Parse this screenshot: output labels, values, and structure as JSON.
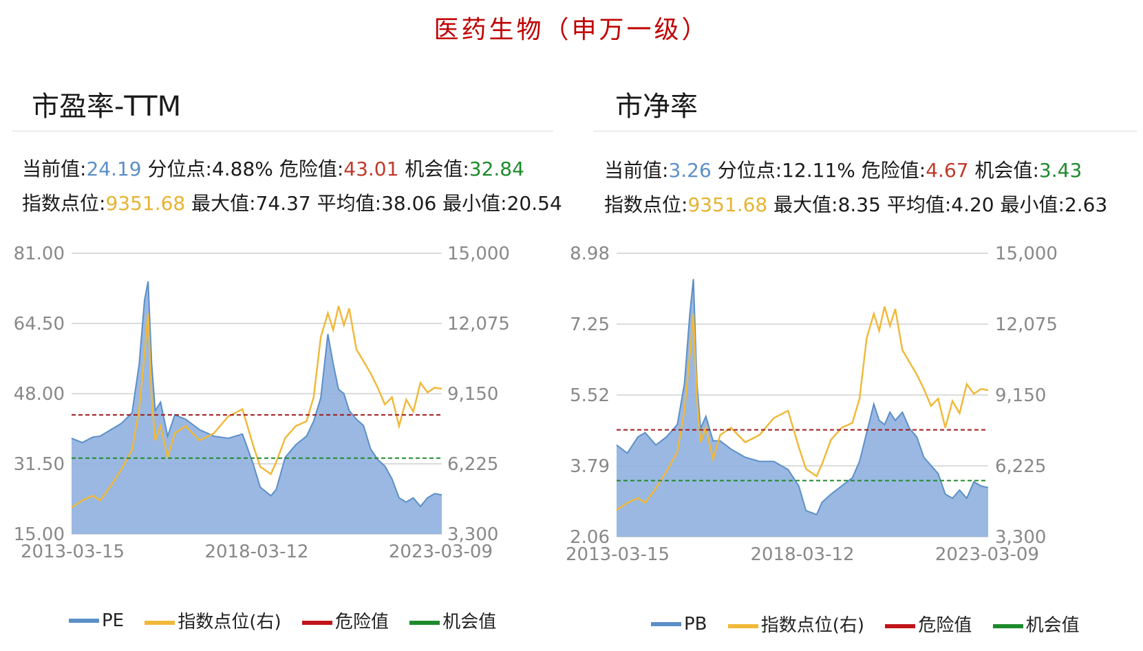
{
  "main_title": "医药生物（申万一级）",
  "colors": {
    "area": "#8fb0df",
    "area_line": "#5b8fc7",
    "index": "#f0b93a",
    "danger": "#9e1b1b",
    "chance": "#1f8a2a"
  },
  "panels": [
    {
      "title": "市盈率-TTM",
      "stats": {
        "current_label": "当前值:",
        "current": "24.19",
        "pct_label": "分位点:",
        "pct": "4.88%",
        "danger_label": "危险值:",
        "danger": "43.01",
        "chance_label": "机会值:",
        "chance": "32.84",
        "index_label": "指数点位:",
        "index": "9351.68",
        "max_label": "最大值:",
        "max": "74.37",
        "avg_label": "平均值:",
        "avg": "38.06",
        "min_label": "最小值:",
        "min": "20.54"
      },
      "legend": {
        "series": "PE",
        "index": "指数点位(右)",
        "danger": "危险值",
        "chance": "机会值"
      }
    },
    {
      "title": "市净率",
      "stats": {
        "current_label": "当前值:",
        "current": "3.26",
        "pct_label": "分位点:",
        "pct": "12.11%",
        "danger_label": "危险值:",
        "danger": "4.67",
        "chance_label": "机会值:",
        "chance": "3.43",
        "index_label": "指数点位:",
        "index": "9351.68",
        "max_label": "最大值:",
        "max": "8.35",
        "avg_label": "平均值:",
        "avg": "4.20",
        "min_label": "最小值:",
        "min": "2.63"
      },
      "legend": {
        "series": "PB",
        "index": "指数点位(右)",
        "danger": "危险值",
        "chance": "机会值"
      }
    }
  ],
  "chart_data": [
    {
      "type": "area",
      "x_ticks": [
        "2013-03-15",
        "2018-03-12",
        "2023-03-09"
      ],
      "y_left_ticks": [
        "15.00",
        "31.50",
        "48.00",
        "64.50",
        "81.00"
      ],
      "y_right_ticks": [
        "3,300",
        "6,225",
        "9,150",
        "12,075",
        "15,000"
      ],
      "ylim_left": [
        15,
        81
      ],
      "ylim_right": [
        3300,
        15000
      ],
      "danger": 43.01,
      "chance": 32.84,
      "series": [
        {
          "name": "PE",
          "axis": "left",
          "x": [
            2013.2,
            2013.5,
            2013.8,
            2014.0,
            2014.3,
            2014.6,
            2014.9,
            2015.1,
            2015.25,
            2015.35,
            2015.45,
            2015.55,
            2015.7,
            2015.9,
            2016.1,
            2016.4,
            2016.8,
            2017.2,
            2017.6,
            2018.0,
            2018.3,
            2018.5,
            2018.8,
            2018.95,
            2019.2,
            2019.5,
            2019.8,
            2020.0,
            2020.2,
            2020.4,
            2020.55,
            2020.7,
            2020.85,
            2021.0,
            2021.2,
            2021.4,
            2021.6,
            2021.8,
            2022.0,
            2022.2,
            2022.4,
            2022.6,
            2022.8,
            2023.0,
            2023.2,
            2023.4,
            2023.6
          ],
          "values": [
            37.5,
            36.5,
            37.8,
            38.0,
            39.5,
            41.0,
            43.5,
            55.0,
            70.0,
            74.4,
            55.0,
            44.0,
            46.0,
            38.0,
            43.0,
            42.0,
            39.5,
            38.0,
            37.5,
            38.5,
            31.5,
            26.0,
            24.0,
            25.5,
            33.0,
            36.0,
            38.0,
            41.5,
            47.0,
            62.0,
            55.0,
            49.0,
            48.0,
            44.0,
            42.0,
            40.5,
            35.0,
            32.5,
            31.0,
            28.0,
            23.5,
            22.5,
            23.5,
            21.5,
            23.5,
            24.5,
            24.2
          ]
        },
        {
          "name": "指数点位(右)",
          "axis": "right",
          "x": [
            2013.2,
            2013.5,
            2013.8,
            2014.0,
            2014.3,
            2014.6,
            2014.9,
            2015.1,
            2015.25,
            2015.35,
            2015.45,
            2015.55,
            2015.7,
            2015.9,
            2016.1,
            2016.4,
            2016.8,
            2017.2,
            2017.6,
            2018.0,
            2018.3,
            2018.5,
            2018.8,
            2018.95,
            2019.2,
            2019.5,
            2019.8,
            2020.0,
            2020.2,
            2020.4,
            2020.55,
            2020.7,
            2020.85,
            2021.0,
            2021.2,
            2021.4,
            2021.6,
            2021.8,
            2022.0,
            2022.2,
            2022.4,
            2022.6,
            2022.8,
            2023.0,
            2023.2,
            2023.4,
            2023.6
          ],
          "values": [
            4400,
            4700,
            4900,
            4700,
            5300,
            6000,
            6800,
            8500,
            10800,
            12500,
            9000,
            7200,
            7800,
            6500,
            7500,
            7800,
            7200,
            7500,
            8200,
            8500,
            7000,
            6100,
            5800,
            6300,
            7300,
            7800,
            8000,
            9000,
            11500,
            12500,
            11800,
            12800,
            12000,
            12700,
            11000,
            10500,
            10000,
            9400,
            8700,
            9000,
            7800,
            8900,
            8400,
            9600,
            9200,
            9400,
            9350
          ]
        }
      ]
    },
    {
      "type": "area",
      "x_ticks": [
        "2013-03-15",
        "2018-03-12",
        "2023-03-09"
      ],
      "y_left_ticks": [
        "2.06",
        "3.79",
        "5.52",
        "7.25",
        "8.98"
      ],
      "y_right_ticks": [
        "3,300",
        "6,225",
        "9,150",
        "12,075",
        "15,000"
      ],
      "ylim_left": [
        2.06,
        8.98
      ],
      "ylim_right": [
        3300,
        15000
      ],
      "danger": 4.67,
      "chance": 3.43,
      "series": [
        {
          "name": "PB",
          "axis": "left",
          "x": [
            2013.2,
            2013.5,
            2013.8,
            2014.0,
            2014.3,
            2014.6,
            2014.9,
            2015.1,
            2015.25,
            2015.35,
            2015.45,
            2015.55,
            2015.7,
            2015.9,
            2016.1,
            2016.4,
            2016.8,
            2017.2,
            2017.6,
            2018.0,
            2018.3,
            2018.5,
            2018.8,
            2018.95,
            2019.2,
            2019.5,
            2019.8,
            2020.0,
            2020.2,
            2020.4,
            2020.55,
            2020.7,
            2020.85,
            2021.0,
            2021.2,
            2021.4,
            2021.6,
            2021.8,
            2022.0,
            2022.2,
            2022.4,
            2022.6,
            2022.8,
            2023.0,
            2023.2,
            2023.4,
            2023.6
          ],
          "values": [
            4.3,
            4.1,
            4.5,
            4.6,
            4.3,
            4.5,
            4.8,
            5.8,
            7.5,
            8.35,
            5.8,
            4.7,
            5.0,
            4.4,
            4.4,
            4.2,
            4.0,
            3.9,
            3.9,
            3.7,
            3.3,
            2.7,
            2.6,
            2.9,
            3.1,
            3.3,
            3.5,
            3.9,
            4.6,
            5.3,
            4.9,
            4.8,
            5.1,
            4.9,
            5.1,
            4.7,
            4.5,
            4.0,
            3.8,
            3.6,
            3.1,
            3.0,
            3.2,
            3.0,
            3.4,
            3.3,
            3.26
          ]
        },
        {
          "name": "指数点位(右)",
          "axis": "right",
          "x": [
            2013.2,
            2013.5,
            2013.8,
            2014.0,
            2014.3,
            2014.6,
            2014.9,
            2015.1,
            2015.25,
            2015.35,
            2015.45,
            2015.55,
            2015.7,
            2015.9,
            2016.1,
            2016.4,
            2016.8,
            2017.2,
            2017.6,
            2018.0,
            2018.3,
            2018.5,
            2018.8,
            2018.95,
            2019.2,
            2019.5,
            2019.8,
            2020.0,
            2020.2,
            2020.4,
            2020.55,
            2020.7,
            2020.85,
            2021.0,
            2021.2,
            2021.4,
            2021.6,
            2021.8,
            2022.0,
            2022.2,
            2022.4,
            2022.6,
            2022.8,
            2023.0,
            2023.2,
            2023.4,
            2023.6
          ],
          "values": [
            4400,
            4700,
            4900,
            4700,
            5300,
            6000,
            6800,
            8500,
            10800,
            12500,
            9000,
            7200,
            7800,
            6500,
            7500,
            7800,
            7200,
            7500,
            8200,
            8500,
            7000,
            6100,
            5800,
            6300,
            7300,
            7800,
            8000,
            9000,
            11500,
            12500,
            11800,
            12800,
            12000,
            12700,
            11000,
            10500,
            10000,
            9400,
            8700,
            9000,
            7800,
            8900,
            8400,
            9600,
            9200,
            9400,
            9350
          ]
        }
      ]
    }
  ]
}
